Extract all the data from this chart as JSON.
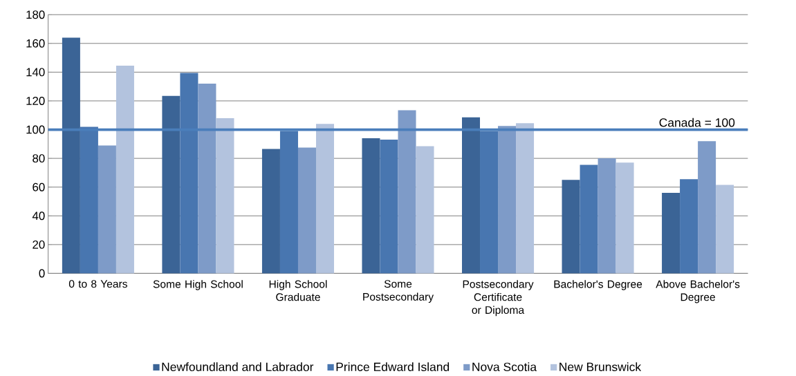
{
  "chart_data": {
    "type": "bar",
    "categories": [
      "0 to 8 Years",
      "Some High School",
      "High School Graduate",
      "Some Postsecondary",
      "Postsecondary Certificate or Diploma",
      "Bachelor's Degree",
      "Above Bachelor's Degree"
    ],
    "series": [
      {
        "name": "Newfoundland and Labrador",
        "color": "#3b6496",
        "values": [
          164,
          123.5,
          86.5,
          94,
          108.5,
          65,
          56
        ]
      },
      {
        "name": "Prince Edward Island",
        "color": "#4876b0",
        "values": [
          102,
          139.5,
          99,
          93,
          99,
          75.5,
          65.5
        ]
      },
      {
        "name": "Nova Scotia",
        "color": "#7e9bc8",
        "values": [
          89,
          132,
          87.5,
          113.5,
          102.5,
          80,
          92
        ]
      },
      {
        "name": "New Brunswick",
        "color": "#b3c3de",
        "values": [
          144.5,
          108,
          104,
          88.5,
          104.5,
          77,
          61.5
        ]
      }
    ],
    "ylim": [
      0,
      180
    ],
    "yticks": [
      0,
      20,
      40,
      60,
      80,
      100,
      120,
      140,
      160,
      180
    ],
    "grid": "y",
    "legend": "bottom",
    "ref_lines": [
      {
        "axis": "y",
        "value": 100,
        "label": "Canada = 100",
        "color": "#4a7ebb"
      }
    ]
  }
}
